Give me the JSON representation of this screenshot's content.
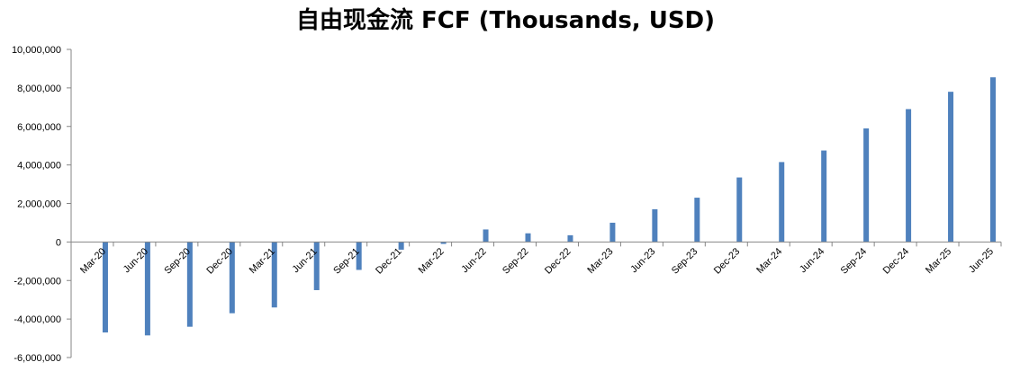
{
  "chart_data": {
    "type": "bar",
    "title": "自由现金流 FCF (Thousands, USD)",
    "xlabel": "",
    "ylabel": "",
    "ylim": [
      -6000000,
      10000000
    ],
    "y_ticks": [
      10000000,
      8000000,
      6000000,
      4000000,
      2000000,
      0,
      -2000000,
      -4000000,
      -6000000
    ],
    "y_tick_labels": [
      "10,000,000",
      "8,000,000",
      "6,000,000",
      "4,000,000",
      "2,000,000",
      "0",
      "-2,000,000",
      "-4,000,000",
      "-6,000,000"
    ],
    "grid": false,
    "legend": "none",
    "bar_color": "#4F81BD",
    "categories": [
      "Mar-20",
      "Jun-20",
      "Sep-20",
      "Dec-20",
      "Mar-21",
      "Jun-21",
      "Sep-21",
      "Dec-21",
      "Mar-22",
      "Jun-22",
      "Sep-22",
      "Dec-22",
      "Mar-23",
      "Jun-23",
      "Sep-23",
      "Dec-23",
      "Mar-24",
      "Jun-24",
      "Sep-24",
      "Dec-24",
      "Mar-25",
      "Jun-25"
    ],
    "values": [
      -4700000,
      -4850000,
      -4400000,
      -3700000,
      -3400000,
      -2500000,
      -1450000,
      -400000,
      -100000,
      650000,
      450000,
      350000,
      1000000,
      1700000,
      2300000,
      3350000,
      4150000,
      4750000,
      5900000,
      6900000,
      7800000,
      8550000
    ]
  }
}
